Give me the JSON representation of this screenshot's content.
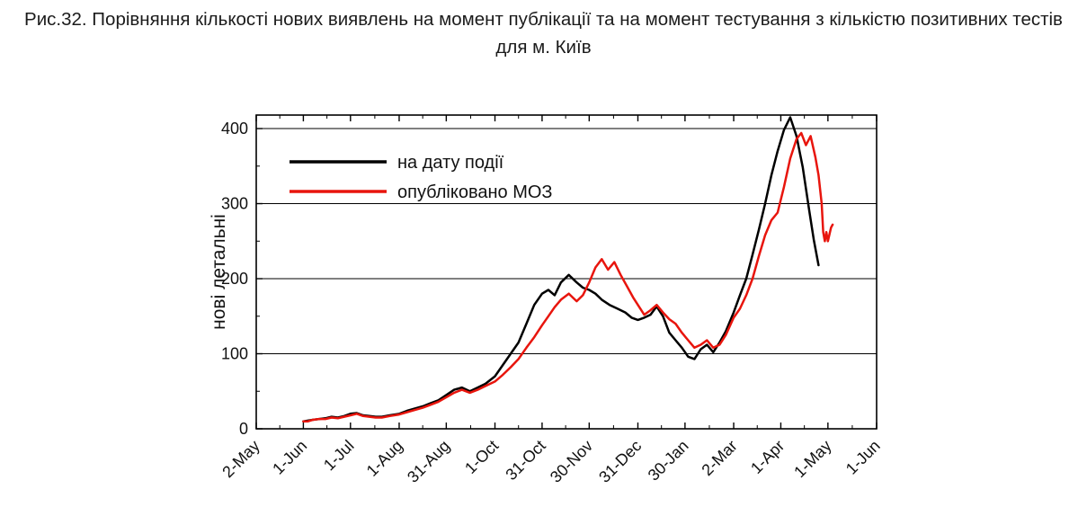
{
  "title": "Рис.32. Порівняння кількості нових виявлень на момент публікації та на момент тестування з кількістю позитивних тестів для м. Київ",
  "chart_data": {
    "type": "line",
    "title": "",
    "xlabel": "",
    "ylabel": "нові летальні",
    "ylim": [
      0,
      418
    ],
    "yticks": [
      0,
      100,
      200,
      300,
      400
    ],
    "xlim": [
      0,
      395
    ],
    "x_unit": "days since 2-May",
    "grid": "horizontal",
    "legend_position": "top-left-inside",
    "frame": true,
    "xticks": [
      {
        "day": 0,
        "label": "2-May"
      },
      {
        "day": 30,
        "label": "1-Jun"
      },
      {
        "day": 60,
        "label": "1-Jul"
      },
      {
        "day": 91,
        "label": "1-Aug"
      },
      {
        "day": 121,
        "label": "31-Aug"
      },
      {
        "day": 152,
        "label": "1-Oct"
      },
      {
        "day": 182,
        "label": "31-Oct"
      },
      {
        "day": 212,
        "label": "30-Nov"
      },
      {
        "day": 243,
        "label": "31-Dec"
      },
      {
        "day": 273,
        "label": "30-Jan"
      },
      {
        "day": 304,
        "label": "2-Mar"
      },
      {
        "day": 334,
        "label": "1-Apr"
      },
      {
        "day": 364,
        "label": "1-May"
      },
      {
        "day": 395,
        "label": "1-Jun"
      }
    ],
    "series": [
      {
        "name": "на дату події",
        "color": "#000000",
        "points": [
          [
            30,
            10
          ],
          [
            33,
            11
          ],
          [
            36,
            12
          ],
          [
            40,
            13
          ],
          [
            44,
            14
          ],
          [
            48,
            16
          ],
          [
            52,
            15
          ],
          [
            56,
            17
          ],
          [
            60,
            20
          ],
          [
            64,
            21
          ],
          [
            68,
            18
          ],
          [
            72,
            17
          ],
          [
            76,
            16
          ],
          [
            80,
            16
          ],
          [
            85,
            18
          ],
          [
            91,
            20
          ],
          [
            96,
            24
          ],
          [
            101,
            27
          ],
          [
            106,
            30
          ],
          [
            111,
            34
          ],
          [
            116,
            38
          ],
          [
            121,
            45
          ],
          [
            126,
            52
          ],
          [
            131,
            55
          ],
          [
            136,
            50
          ],
          [
            141,
            55
          ],
          [
            146,
            60
          ],
          [
            152,
            70
          ],
          [
            157,
            85
          ],
          [
            162,
            100
          ],
          [
            167,
            115
          ],
          [
            172,
            140
          ],
          [
            177,
            165
          ],
          [
            182,
            180
          ],
          [
            186,
            185
          ],
          [
            190,
            178
          ],
          [
            194,
            195
          ],
          [
            199,
            205
          ],
          [
            204,
            195
          ],
          [
            208,
            188
          ],
          [
            212,
            185
          ],
          [
            216,
            180
          ],
          [
            220,
            172
          ],
          [
            225,
            165
          ],
          [
            230,
            160
          ],
          [
            235,
            155
          ],
          [
            239,
            148
          ],
          [
            243,
            145
          ],
          [
            247,
            148
          ],
          [
            251,
            152
          ],
          [
            255,
            163
          ],
          [
            259,
            150
          ],
          [
            263,
            128
          ],
          [
            267,
            118
          ],
          [
            271,
            108
          ],
          [
            275,
            96
          ],
          [
            279,
            93
          ],
          [
            283,
            106
          ],
          [
            287,
            112
          ],
          [
            291,
            102
          ],
          [
            295,
            115
          ],
          [
            299,
            130
          ],
          [
            304,
            155
          ],
          [
            308,
            178
          ],
          [
            312,
            200
          ],
          [
            316,
            232
          ],
          [
            320,
            265
          ],
          [
            324,
            300
          ],
          [
            328,
            338
          ],
          [
            332,
            370
          ],
          [
            336,
            398
          ],
          [
            340,
            415
          ],
          [
            344,
            390
          ],
          [
            348,
            348
          ],
          [
            352,
            292
          ],
          [
            355,
            252
          ],
          [
            358,
            218
          ]
        ]
      },
      {
        "name": "опубліковано МОЗ",
        "color": "#e8150d",
        "points": [
          [
            30,
            10
          ],
          [
            33,
            10
          ],
          [
            36,
            12
          ],
          [
            40,
            13
          ],
          [
            44,
            13
          ],
          [
            48,
            15
          ],
          [
            52,
            14
          ],
          [
            56,
            16
          ],
          [
            60,
            18
          ],
          [
            64,
            20
          ],
          [
            68,
            17
          ],
          [
            72,
            16
          ],
          [
            76,
            15
          ],
          [
            80,
            15
          ],
          [
            85,
            17
          ],
          [
            91,
            19
          ],
          [
            96,
            22
          ],
          [
            101,
            25
          ],
          [
            106,
            28
          ],
          [
            111,
            32
          ],
          [
            116,
            36
          ],
          [
            121,
            42
          ],
          [
            126,
            48
          ],
          [
            131,
            52
          ],
          [
            136,
            48
          ],
          [
            141,
            52
          ],
          [
            146,
            57
          ],
          [
            152,
            63
          ],
          [
            157,
            72
          ],
          [
            162,
            82
          ],
          [
            167,
            93
          ],
          [
            172,
            108
          ],
          [
            177,
            122
          ],
          [
            182,
            138
          ],
          [
            186,
            150
          ],
          [
            190,
            162
          ],
          [
            194,
            172
          ],
          [
            199,
            180
          ],
          [
            204,
            170
          ],
          [
            208,
            178
          ],
          [
            212,
            195
          ],
          [
            216,
            215
          ],
          [
            220,
            226
          ],
          [
            224,
            212
          ],
          [
            228,
            222
          ],
          [
            232,
            205
          ],
          [
            236,
            190
          ],
          [
            240,
            175
          ],
          [
            243,
            165
          ],
          [
            247,
            152
          ],
          [
            251,
            158
          ],
          [
            255,
            165
          ],
          [
            259,
            155
          ],
          [
            263,
            146
          ],
          [
            267,
            140
          ],
          [
            271,
            128
          ],
          [
            275,
            118
          ],
          [
            279,
            108
          ],
          [
            283,
            112
          ],
          [
            287,
            118
          ],
          [
            291,
            108
          ],
          [
            295,
            112
          ],
          [
            299,
            125
          ],
          [
            304,
            148
          ],
          [
            308,
            160
          ],
          [
            312,
            178
          ],
          [
            316,
            200
          ],
          [
            320,
            230
          ],
          [
            324,
            258
          ],
          [
            328,
            278
          ],
          [
            332,
            288
          ],
          [
            336,
            322
          ],
          [
            340,
            360
          ],
          [
            344,
            386
          ],
          [
            347,
            394
          ],
          [
            350,
            378
          ],
          [
            353,
            390
          ],
          [
            356,
            362
          ],
          [
            358,
            338
          ],
          [
            360,
            300
          ],
          [
            361,
            262
          ],
          [
            362,
            250
          ],
          [
            363,
            262
          ],
          [
            364,
            250
          ],
          [
            366,
            268
          ],
          [
            367,
            272
          ]
        ]
      }
    ]
  }
}
